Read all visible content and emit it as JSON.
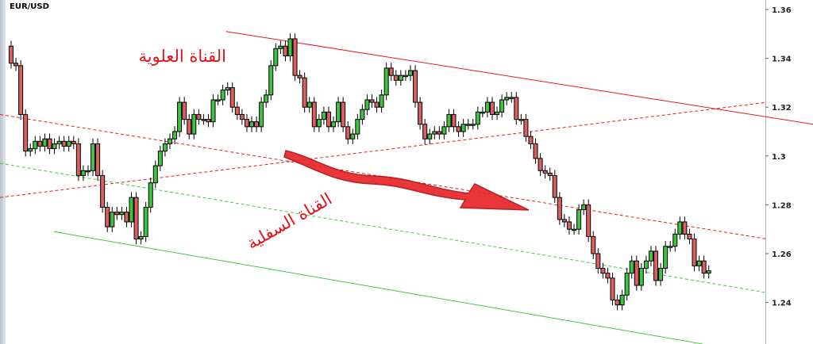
{
  "chart_data": {
    "type": "candlestick",
    "title": "EUR/USD",
    "ylim": [
      1.228,
      1.364
    ],
    "yticks": [
      "1.36",
      "1.34",
      "1.32",
      "1.3",
      "1.28",
      "1.26",
      "1.24"
    ],
    "ytick_values": [
      1.36,
      1.34,
      1.32,
      1.3,
      1.28,
      1.26,
      1.24
    ],
    "grid": false,
    "colors": {
      "up": "#3fc43f",
      "down": "#d9605f",
      "upper_channel": "#f01818",
      "lower_channel": "#40c840",
      "arrow": "#e41c1c"
    },
    "open": [
      1.345,
      1.338,
      1.337,
      1.317,
      1.302,
      1.303,
      1.306,
      1.304,
      1.307,
      1.303,
      1.305,
      1.306,
      1.304,
      1.306,
      1.305,
      1.292,
      1.294,
      1.294,
      1.305,
      1.292,
      1.279,
      1.271,
      1.277,
      1.276,
      1.277,
      1.273,
      1.283,
      1.266,
      1.267,
      1.279,
      1.289,
      1.296,
      1.302,
      1.305,
      1.307,
      1.31,
      1.322,
      1.315,
      1.309,
      1.317,
      1.315,
      1.315,
      1.314,
      1.323,
      1.323,
      1.327,
      1.328,
      1.32,
      1.317,
      1.315,
      1.312,
      1.314,
      1.312,
      1.322,
      1.325,
      1.337,
      1.344,
      1.345,
      1.341,
      1.348,
      1.333,
      1.332,
      1.32,
      1.322,
      1.312,
      1.315,
      1.318,
      1.312,
      1.314,
      1.322,
      1.312,
      1.307,
      1.309,
      1.315,
      1.319,
      1.323,
      1.322,
      1.32,
      1.325,
      1.336,
      1.333,
      1.331,
      1.333,
      1.333,
      1.335,
      1.322,
      1.313,
      1.307,
      1.309,
      1.31,
      1.309,
      1.312,
      1.317,
      1.312,
      1.31,
      1.313,
      1.313,
      1.313,
      1.318,
      1.318,
      1.322,
      1.317,
      1.318,
      1.323,
      1.324,
      1.324,
      1.315,
      1.315,
      1.308,
      1.305,
      1.299,
      1.294,
      1.293,
      1.292,
      1.283,
      1.274,
      1.273,
      1.27,
      1.27,
      1.278,
      1.28,
      1.267,
      1.26,
      1.254,
      1.252,
      1.25,
      1.241,
      1.239,
      1.243,
      1.252,
      1.257,
      1.247,
      1.254,
      1.257,
      1.261,
      1.249,
      1.254,
      1.263,
      1.263,
      1.268,
      1.273,
      1.268,
      1.266,
      1.255,
      1.257,
      1.252
    ],
    "close": [
      1.338,
      1.337,
      1.317,
      1.302,
      1.303,
      1.306,
      1.304,
      1.307,
      1.303,
      1.305,
      1.306,
      1.304,
      1.306,
      1.305,
      1.292,
      1.294,
      1.294,
      1.305,
      1.292,
      1.279,
      1.271,
      1.277,
      1.276,
      1.277,
      1.273,
      1.283,
      1.266,
      1.267,
      1.279,
      1.289,
      1.296,
      1.302,
      1.305,
      1.307,
      1.31,
      1.322,
      1.315,
      1.309,
      1.317,
      1.315,
      1.315,
      1.314,
      1.323,
      1.323,
      1.327,
      1.328,
      1.32,
      1.317,
      1.315,
      1.312,
      1.314,
      1.312,
      1.322,
      1.325,
      1.337,
      1.344,
      1.345,
      1.341,
      1.348,
      1.333,
      1.332,
      1.32,
      1.322,
      1.312,
      1.315,
      1.318,
      1.312,
      1.314,
      1.322,
      1.312,
      1.307,
      1.309,
      1.315,
      1.319,
      1.323,
      1.322,
      1.32,
      1.325,
      1.336,
      1.333,
      1.331,
      1.333,
      1.333,
      1.335,
      1.322,
      1.313,
      1.307,
      1.309,
      1.31,
      1.309,
      1.312,
      1.317,
      1.312,
      1.31,
      1.313,
      1.313,
      1.313,
      1.318,
      1.318,
      1.322,
      1.317,
      1.318,
      1.323,
      1.324,
      1.324,
      1.315,
      1.315,
      1.308,
      1.305,
      1.299,
      1.294,
      1.293,
      1.292,
      1.283,
      1.274,
      1.273,
      1.27,
      1.27,
      1.278,
      1.28,
      1.267,
      1.26,
      1.254,
      1.252,
      1.25,
      1.241,
      1.239,
      1.243,
      1.252,
      1.257,
      1.247,
      1.254,
      1.257,
      1.261,
      1.249,
      1.254,
      1.263,
      1.263,
      1.268,
      1.273,
      1.268,
      1.266,
      1.255,
      1.257,
      1.252,
      1.253
    ],
    "trendlines": [
      {
        "kind": "upper-channel-top",
        "style": "solid",
        "color": "#f01818",
        "from": [
          44.7,
          1.351
        ],
        "to": [
          166.7,
          1.313
        ]
      },
      {
        "kind": "upper-channel-bottom",
        "style": "dashed",
        "color": "#f01818",
        "from": [
          -2.3,
          1.317
        ],
        "to": [
          157.1,
          1.266
        ]
      },
      {
        "kind": "lower-channel-top",
        "style": "dashed",
        "color": "#f01818",
        "from": [
          -2.3,
          1.283
        ],
        "to": [
          157.1,
          1.322
        ]
      },
      {
        "kind": "lower-channel-mid",
        "style": "dashed",
        "color": "#40c840",
        "from": [
          -2.3,
          1.297
        ],
        "to": [
          157.1,
          1.244
        ]
      },
      {
        "kind": "lower-channel-bottom",
        "style": "solid",
        "color": "#40c840",
        "from": [
          8.9,
          1.269
        ],
        "to": [
          143.7,
          1.223
        ]
      }
    ],
    "annotations": {
      "upper": "القناة العلوية",
      "lower": "القناة السفلية"
    }
  }
}
